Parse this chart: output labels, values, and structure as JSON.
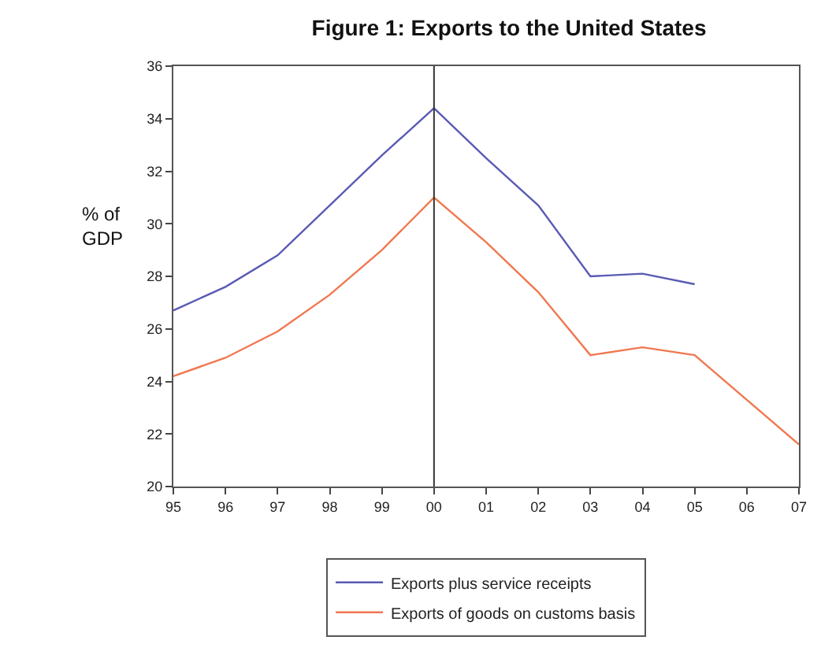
{
  "chart_data": {
    "type": "line",
    "title": "Figure 1: Exports to the United States",
    "ylabel": "% of GDP",
    "categories": [
      "95",
      "96",
      "97",
      "98",
      "99",
      "00",
      "01",
      "02",
      "03",
      "04",
      "05",
      "06",
      "07"
    ],
    "series": [
      {
        "name": "Exports plus service receipts",
        "color": "#5a5ab4",
        "values": [
          26.7,
          27.6,
          28.8,
          30.7,
          32.6,
          34.4,
          32.5,
          30.7,
          28.0,
          28.1,
          27.7,
          null,
          null
        ]
      },
      {
        "name": "Exports of goods on customs basis",
        "color": "#f07850",
        "values": [
          24.2,
          24.9,
          25.9,
          27.3,
          29.0,
          31.0,
          29.3,
          27.4,
          25.0,
          25.3,
          25.0,
          23.3,
          21.6
        ]
      }
    ],
    "ylim": [
      20,
      36
    ],
    "yticks": [
      20,
      22,
      24,
      26,
      28,
      30,
      32,
      34,
      36
    ],
    "ref_lines": [
      {
        "axis": "x",
        "value": "00",
        "color": "#333333"
      }
    ],
    "grid": false,
    "legend": "bottom",
    "marker": "none",
    "line_style": "solid"
  }
}
